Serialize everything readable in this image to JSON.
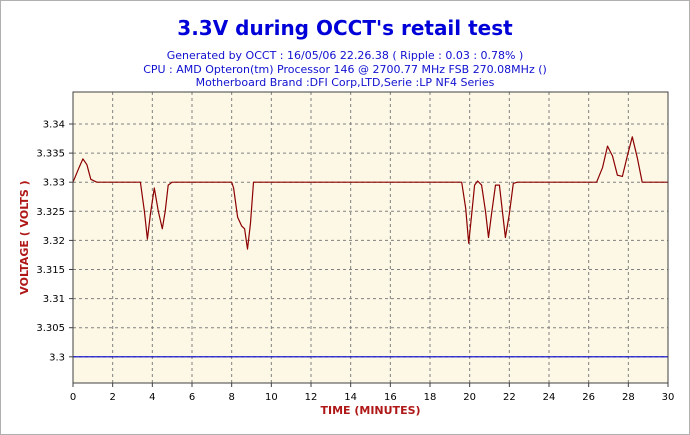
{
  "chart_data": {
    "type": "line",
    "title": "3.3V during OCCT's retail test",
    "subtitles": [
      "Generated by OCCT : 16/05/06 22.26.38 ( Ripple : 0.03 : 0.78% )",
      "CPU : AMD Opteron(tm) Processor 146     @ 2700.77 MHz FSB 270.08MHz ()",
      "Motherboard Brand :DFI Corp,LTD,Serie :LP NF4 Series"
    ],
    "xlabel": "TIME (MINUTES)",
    "ylabel": "VOLTAGE ( VOLTS )",
    "xlim": [
      0,
      30
    ],
    "ylim": [
      3.2955,
      3.3455
    ],
    "x_ticks": [
      "0",
      "2",
      "4",
      "6",
      "8",
      "10",
      "12",
      "14",
      "16",
      "18",
      "20",
      "22",
      "24",
      "26",
      "28",
      "30"
    ],
    "y_ticks": [
      "3.3",
      "3.305",
      "3.31",
      "3.315",
      "3.32",
      "3.325",
      "3.33",
      "3.335",
      "3.34"
    ],
    "y_tick_values": [
      3.3,
      3.305,
      3.31,
      3.315,
      3.32,
      3.325,
      3.33,
      3.335,
      3.34
    ],
    "grid": true,
    "colors": {
      "plot_background": "#fdf8e6",
      "measured_line": "#8b0000",
      "reference_line": "#0000cc",
      "grid": "#808080"
    },
    "series": [
      {
        "x": [
          0,
          0.3,
          0.5,
          0.7,
          0.9,
          1.2,
          1.5,
          2.0,
          3.0,
          3.4,
          3.6,
          3.75,
          3.9,
          4.1,
          4.3,
          4.5,
          4.65,
          4.8,
          5.0,
          5.2,
          6.0,
          7.0,
          8.0,
          8.1,
          8.3,
          8.5,
          8.65,
          8.8,
          8.95,
          9.1,
          9.3,
          9.5,
          10.0,
          12.0,
          14.0,
          16.0,
          18.0,
          19.6,
          19.8,
          19.95,
          20.1,
          20.25,
          20.4,
          20.6,
          20.8,
          20.95,
          21.1,
          21.3,
          21.5,
          21.65,
          21.8,
          22.0,
          22.2,
          22.4,
          22.6,
          23.0,
          24.0,
          25.0,
          26.0,
          26.4,
          26.7,
          26.95,
          27.2,
          27.45,
          27.7,
          27.95,
          28.2,
          28.45,
          28.7,
          29.0,
          29.5,
          30.0
        ],
        "y": [
          3.33,
          3.3325,
          3.334,
          3.333,
          3.3305,
          3.33,
          3.33,
          3.33,
          3.33,
          3.33,
          3.325,
          3.3202,
          3.3245,
          3.329,
          3.325,
          3.322,
          3.325,
          3.3295,
          3.33,
          3.33,
          3.33,
          3.33,
          3.33,
          3.329,
          3.324,
          3.3225,
          3.322,
          3.3185,
          3.323,
          3.33,
          3.33,
          3.33,
          3.33,
          3.33,
          3.33,
          3.33,
          3.33,
          3.33,
          3.3255,
          3.3195,
          3.3245,
          3.3295,
          3.3302,
          3.3295,
          3.325,
          3.3205,
          3.3245,
          3.3295,
          3.3295,
          3.325,
          3.3205,
          3.3245,
          3.3298,
          3.33,
          3.33,
          3.33,
          3.33,
          3.33,
          3.33,
          3.33,
          3.3325,
          3.3362,
          3.3345,
          3.3312,
          3.331,
          3.3345,
          3.3378,
          3.3342,
          3.33,
          3.33,
          3.33,
          3.33
        ]
      },
      {
        "x": [
          0,
          30
        ],
        "y": [
          3.3,
          3.3
        ]
      }
    ]
  }
}
